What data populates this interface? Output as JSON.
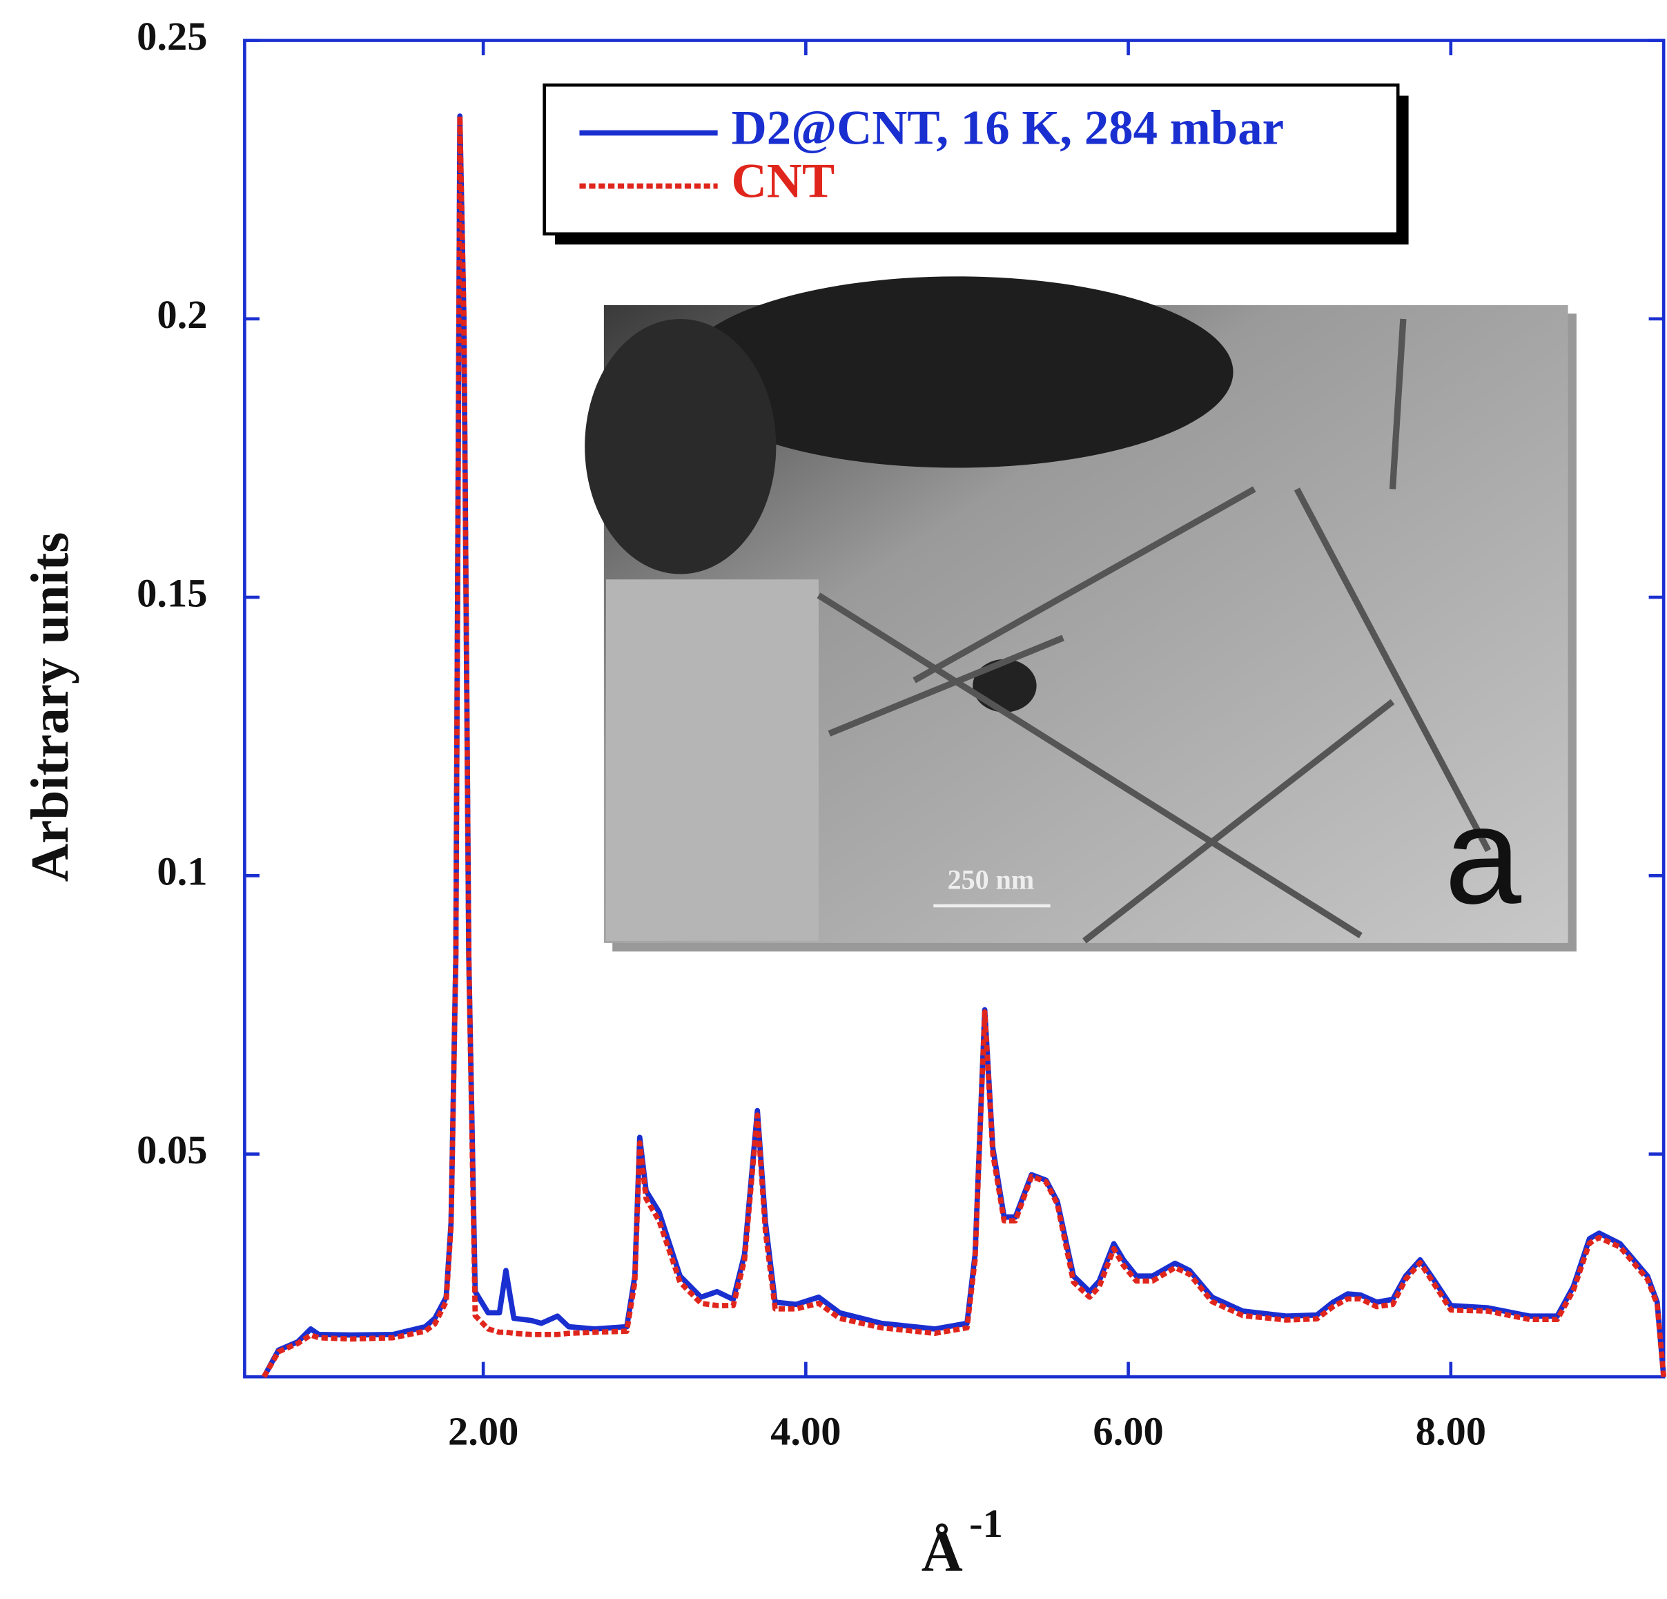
{
  "chart_data": {
    "type": "line",
    "ylabel": "Arbitrary units",
    "xlabel": "Å",
    "xlabel_exponent": "-1",
    "xlim": [
      0.52,
      9.32
    ],
    "ylim": [
      0.01,
      0.25
    ],
    "xticks": [
      {
        "value": 2,
        "label": "2.00"
      },
      {
        "value": 4,
        "label": "4.00"
      },
      {
        "value": 6,
        "label": "6.00"
      },
      {
        "value": 8,
        "label": "8.00"
      }
    ],
    "yticks": [
      0.05,
      0.1,
      0.15,
      0.2,
      0.25
    ],
    "grid": false,
    "legend": "upper center",
    "x": [
      0.64,
      0.73,
      0.85,
      0.93,
      0.98,
      1.18,
      1.44,
      1.64,
      1.7,
      1.77,
      1.8,
      1.83,
      1.855,
      1.88,
      1.91,
      1.95,
      2.03,
      2.1,
      2.14,
      2.19,
      2.3,
      2.36,
      2.46,
      2.53,
      2.69,
      2.89,
      2.94,
      2.97,
      3.01,
      3.09,
      3.22,
      3.35,
      3.45,
      3.55,
      3.62,
      3.7,
      3.75,
      3.81,
      3.94,
      4.08,
      4.21,
      4.47,
      4.8,
      5.0,
      5.05,
      5.11,
      5.16,
      5.23,
      5.3,
      5.4,
      5.49,
      5.56,
      5.66,
      5.76,
      5.82,
      5.91,
      5.97,
      6.05,
      6.15,
      6.29,
      6.38,
      6.52,
      6.71,
      6.98,
      7.17,
      7.27,
      7.36,
      7.44,
      7.54,
      7.64,
      7.72,
      7.81,
      7.9,
      8.0,
      8.23,
      8.49,
      8.66,
      8.76,
      8.86,
      8.92,
      9.05,
      9.22,
      9.28,
      9.32
    ],
    "series": [
      {
        "name": "D2@CNT, 16 K, 284 mbar",
        "color": "#1a2fd0",
        "dash": false,
        "values": [
          0.01,
          0.0148,
          0.0163,
          0.0186,
          0.0176,
          0.0175,
          0.0176,
          0.019,
          0.0205,
          0.0243,
          0.0377,
          0.0855,
          0.2364,
          0.2,
          0.0855,
          0.0253,
          0.0215,
          0.0215,
          0.0291,
          0.0205,
          0.0201,
          0.0196,
          0.0209,
          0.019,
          0.0186,
          0.019,
          0.0281,
          0.053,
          0.0434,
          0.0396,
          0.0281,
          0.0243,
          0.0253,
          0.0239,
          0.032,
          0.0578,
          0.0377,
          0.0234,
          0.023,
          0.0243,
          0.0215,
          0.0196,
          0.0186,
          0.0196,
          0.032,
          0.0759,
          0.0511,
          0.0387,
          0.0387,
          0.0463,
          0.0453,
          0.0415,
          0.0281,
          0.0253,
          0.0272,
          0.0339,
          0.031,
          0.0281,
          0.0281,
          0.0304,
          0.0291,
          0.0243,
          0.0218,
          0.0209,
          0.0211,
          0.0234,
          0.0249,
          0.0247,
          0.0234,
          0.0239,
          0.0281,
          0.031,
          0.0272,
          0.0228,
          0.0224,
          0.0209,
          0.0209,
          0.0262,
          0.0348,
          0.0358,
          0.0339,
          0.0281,
          0.0234,
          0.01
        ]
      },
      {
        "name": "CNT",
        "color": "#e0261c",
        "dash": true,
        "values": [
          0.01,
          0.0145,
          0.016,
          0.0175,
          0.017,
          0.0168,
          0.017,
          0.0182,
          0.0195,
          0.0235,
          0.037,
          0.085,
          0.2364,
          0.2,
          0.085,
          0.021,
          0.0186,
          0.018,
          0.018,
          0.0178,
          0.0176,
          0.0176,
          0.0176,
          0.0178,
          0.018,
          0.0182,
          0.027,
          0.052,
          0.042,
          0.038,
          0.027,
          0.0232,
          0.0228,
          0.0228,
          0.031,
          0.057,
          0.036,
          0.0222,
          0.0222,
          0.0232,
          0.0205,
          0.0188,
          0.0178,
          0.0188,
          0.031,
          0.0755,
          0.05,
          0.038,
          0.038,
          0.046,
          0.045,
          0.041,
          0.027,
          0.0243,
          0.0262,
          0.033,
          0.03,
          0.0272,
          0.0272,
          0.0296,
          0.0284,
          0.0235,
          0.021,
          0.0202,
          0.0204,
          0.0226,
          0.024,
          0.024,
          0.0226,
          0.023,
          0.0275,
          0.0305,
          0.0265,
          0.022,
          0.0218,
          0.0203,
          0.0203,
          0.0255,
          0.034,
          0.035,
          0.0333,
          0.0275,
          0.023,
          0.01
        ]
      }
    ],
    "inset": {
      "scale_bar": "250 nm",
      "panel_label": "a"
    }
  }
}
